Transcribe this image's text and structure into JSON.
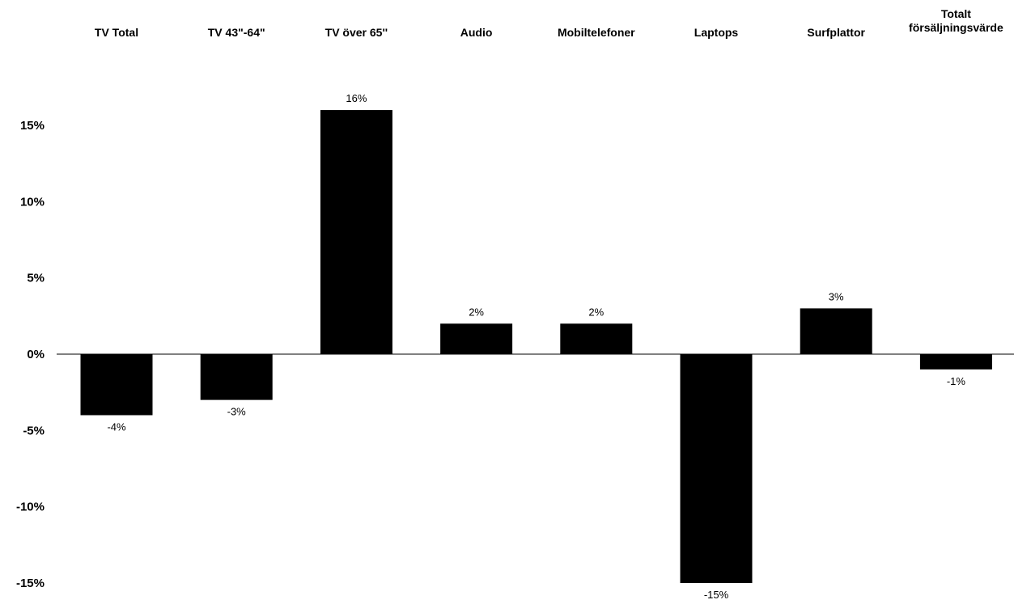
{
  "chart_data": {
    "type": "bar",
    "categories": [
      "TV Total",
      "TV 43\"-64\"",
      "TV över 65''",
      "Audio",
      "Mobiltelefoner",
      "Laptops",
      "Surfplattor",
      "Totalt försäljningsvärde"
    ],
    "category_label_lines": [
      [
        "TV Total"
      ],
      [
        "TV 43\"-64\""
      ],
      [
        "TV över 65''"
      ],
      [
        "Audio"
      ],
      [
        "Mobiltelefoner"
      ],
      [
        "Laptops"
      ],
      [
        "Surfplattor"
      ],
      [
        "Totalt",
        "försäljningsvärde"
      ]
    ],
    "values": [
      -4,
      -3,
      16,
      2,
      2,
      -15,
      3,
      -1
    ],
    "data_labels": [
      "-4%",
      "-3%",
      "16%",
      "2%",
      "2%",
      "-15%",
      "3%",
      "-1%"
    ],
    "y_ticks": [
      15,
      10,
      5,
      0,
      -5,
      -10,
      -15
    ],
    "y_tick_labels": [
      "15%",
      "10%",
      "5%",
      "0%",
      "-5%",
      "-10%",
      "-15%"
    ],
    "ylim": [
      -15,
      16
    ],
    "title": "",
    "xlabel": "",
    "ylabel": "",
    "grid": false,
    "category_labels_position": "top",
    "bar_color": "#000000"
  }
}
